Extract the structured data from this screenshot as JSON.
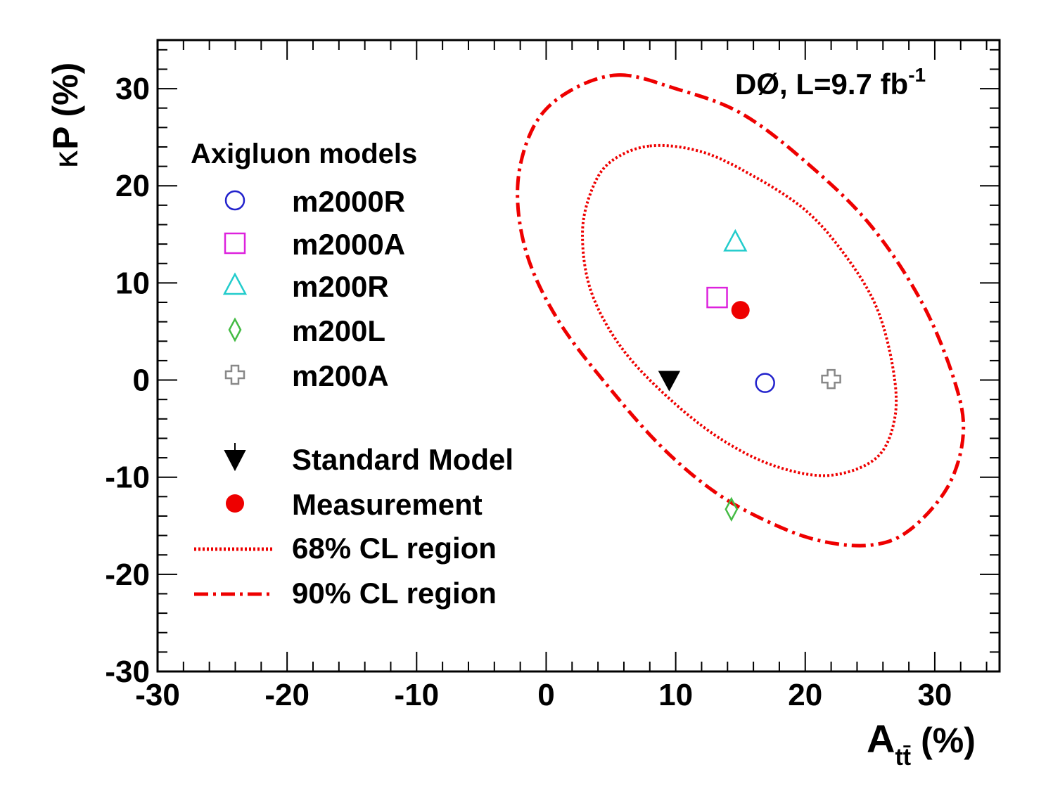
{
  "chart_data": {
    "type": "scatter",
    "experiment": "DØ, L=9.7 fb",
    "experiment_sup": "-1",
    "xlabel": "A",
    "xlabel_sub": "tt̄",
    "xlabel_unit": "(%)",
    "ylabel_symbol": "κ",
    "ylabel_text": "P (%)",
    "xlim": [
      -30,
      35
    ],
    "ylim": [
      -30,
      35
    ],
    "xticks": [
      -30,
      -20,
      -10,
      0,
      10,
      20,
      30
    ],
    "yticks": [
      -30,
      -20,
      -10,
      0,
      10,
      20,
      30
    ],
    "xtick_labels": [
      "-30",
      "-20",
      "-10",
      "0",
      "10",
      "20",
      "30"
    ],
    "ytick_labels": [
      "-30",
      "-20",
      "-10",
      "0",
      "10",
      "20",
      "30"
    ],
    "legend_header": "Axigluon models",
    "models": [
      {
        "name": "m2000R",
        "marker": "open-circle",
        "color": "#2222cc",
        "x": 16.9,
        "y": -0.3
      },
      {
        "name": "m2000A",
        "marker": "open-square",
        "color": "#dd22dd",
        "x": 13.2,
        "y": 8.5
      },
      {
        "name": "m200R",
        "marker": "open-triangle",
        "color": "#22cccc",
        "x": 14.6,
        "y": 14.2
      },
      {
        "name": "m200L",
        "marker": "open-diamond",
        "color": "#44bb44",
        "x": 14.3,
        "y": -13.3
      },
      {
        "name": "m200A",
        "marker": "open-cross",
        "color": "#888888",
        "x": 22.0,
        "y": 0.1
      }
    ],
    "standard_model": {
      "name": "Standard Model",
      "marker": "filled-triangle-down",
      "color": "#000000",
      "x": 9.5,
      "y": 0.0
    },
    "measurement": {
      "name": "Measurement",
      "marker": "filled-circle",
      "color": "#ee0000",
      "x": 15.0,
      "y": 7.2
    },
    "contours": [
      {
        "name": "68% CL region",
        "style": "dotted",
        "color": "#ee0000",
        "points": [
          [
            8.0,
            24.1
          ],
          [
            12.0,
            23.5
          ],
          [
            16.0,
            21.0
          ],
          [
            20.0,
            17.5
          ],
          [
            23.0,
            13.0
          ],
          [
            25.5,
            7.5
          ],
          [
            26.8,
            1.0
          ],
          [
            26.9,
            -4.0
          ],
          [
            25.5,
            -8.0
          ],
          [
            22.0,
            -9.8
          ],
          [
            18.0,
            -9.0
          ],
          [
            14.0,
            -6.5
          ],
          [
            10.0,
            -2.5
          ],
          [
            6.0,
            3.0
          ],
          [
            3.5,
            9.0
          ],
          [
            2.8,
            15.0
          ],
          [
            3.5,
            19.5
          ],
          [
            5.0,
            22.5
          ],
          [
            8.0,
            24.1
          ]
        ]
      },
      {
        "name": "90% CL region",
        "style": "dash-dot",
        "color": "#ee0000",
        "points": [
          [
            5.5,
            31.4
          ],
          [
            10.0,
            30.0
          ],
          [
            15.0,
            27.5
          ],
          [
            20.0,
            22.5
          ],
          [
            25.0,
            16.0
          ],
          [
            29.0,
            8.0
          ],
          [
            31.5,
            0.0
          ],
          [
            32.2,
            -5.5
          ],
          [
            31.0,
            -11.0
          ],
          [
            28.0,
            -15.5
          ],
          [
            25.0,
            -17.0
          ],
          [
            21.0,
            -16.5
          ],
          [
            17.0,
            -14.5
          ],
          [
            13.0,
            -11.5
          ],
          [
            9.0,
            -7.0
          ],
          [
            5.0,
            -1.0
          ],
          [
            1.0,
            6.0
          ],
          [
            -1.5,
            13.0
          ],
          [
            -2.2,
            20.0
          ],
          [
            -1.0,
            26.0
          ],
          [
            1.5,
            29.5
          ],
          [
            5.5,
            31.4
          ]
        ]
      }
    ],
    "legend_sm_label": "Standard Model",
    "legend_meas_label": "Measurement",
    "legend_68_label": "68% CL region",
    "legend_90_label": "90% CL region"
  }
}
